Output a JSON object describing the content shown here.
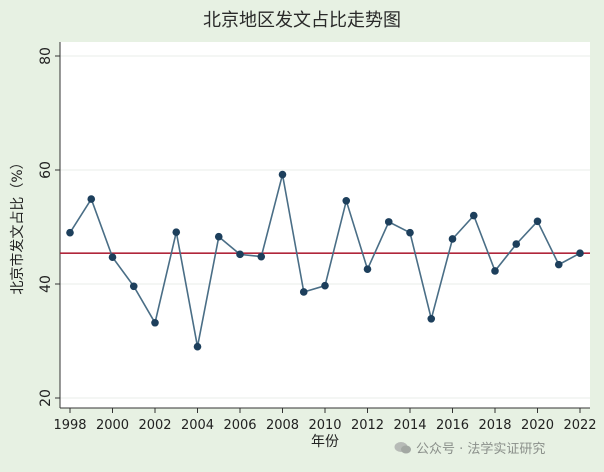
{
  "chart_data": {
    "type": "line",
    "title": "北京地区发文占比走势图",
    "xlabel": "年份",
    "ylabel": "北京市发文占比（%）",
    "x": [
      1998,
      1999,
      2000,
      2001,
      2002,
      2003,
      2004,
      2005,
      2006,
      2007,
      2008,
      2009,
      2010,
      2011,
      2012,
      2013,
      2014,
      2015,
      2016,
      2017,
      2018,
      2019,
      2020,
      2021,
      2022
    ],
    "series": [
      {
        "values": [
          49.0,
          54.9,
          44.7,
          39.6,
          33.2,
          49.1,
          29.0,
          48.3,
          45.2,
          44.8,
          59.2,
          38.6,
          39.7,
          54.6,
          42.6,
          50.9,
          49.0,
          33.9,
          47.9,
          52.0,
          42.3,
          47.0,
          51.0,
          43.4,
          45.4
        ]
      }
    ],
    "reference_line": {
      "y": 45.4
    },
    "xticks": [
      "1998",
      "2000",
      "2002",
      "2004",
      "2006",
      "2008",
      "2010",
      "2012",
      "2014",
      "2016",
      "2018",
      "2020",
      "2022"
    ],
    "yticks": [
      "20",
      "40",
      "60",
      "80"
    ],
    "ylim": [
      20,
      80
    ],
    "xlim": [
      1998,
      2022
    ],
    "grid": true,
    "colors": {
      "line": "#4a6e86",
      "marker": "#1d3f5c",
      "reference": "#b0263b",
      "plot_bg": "#ffffff",
      "page_bg": "#e7f1e3"
    }
  },
  "watermark": {
    "text": "公众号 · 法学实证研究",
    "icon": "wechat-icon"
  }
}
